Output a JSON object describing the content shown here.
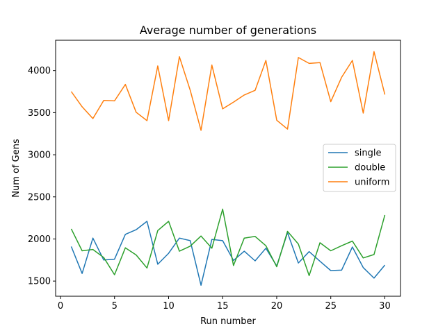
{
  "chart_data": {
    "type": "line",
    "title": "Average number of generations",
    "xlabel": "Run number",
    "ylabel": "Num of Gens",
    "xlim": [
      -0.45,
      31.45
    ],
    "ylim": [
      1320,
      4360
    ],
    "xticks": [
      0,
      5,
      10,
      15,
      20,
      25,
      30
    ],
    "yticks": [
      1500,
      2000,
      2500,
      3000,
      3500,
      4000
    ],
    "legend_position": "center-right",
    "x": [
      1,
      2,
      3,
      4,
      5,
      6,
      7,
      8,
      9,
      10,
      11,
      12,
      13,
      14,
      15,
      16,
      17,
      18,
      19,
      20,
      21,
      22,
      23,
      24,
      25,
      26,
      27,
      28,
      29,
      30
    ],
    "series": [
      {
        "name": "single",
        "color": "#1f77b4",
        "values": [
          1910,
          1590,
          2010,
          1750,
          1760,
          2055,
          2110,
          2210,
          1700,
          1830,
          2010,
          1980,
          1450,
          1995,
          1980,
          1745,
          1855,
          1740,
          1890,
          1680,
          2075,
          1715,
          1850,
          1735,
          1625,
          1630,
          1905,
          1660,
          1535,
          1690
        ]
      },
      {
        "name": "double",
        "color": "#2ca02c",
        "values": [
          2120,
          1860,
          1875,
          1780,
          1575,
          1895,
          1810,
          1655,
          2100,
          2210,
          1855,
          1915,
          2035,
          1890,
          2355,
          1685,
          2010,
          2030,
          1920,
          1670,
          2090,
          1940,
          1565,
          1955,
          1860,
          1920,
          1975,
          1775,
          1815,
          2285
        ]
      },
      {
        "name": "uniform",
        "color": "#ff7f0e",
        "values": [
          3750,
          3570,
          3430,
          3645,
          3640,
          3835,
          3505,
          3405,
          4055,
          3405,
          4165,
          3765,
          3290,
          4065,
          3545,
          3625,
          3710,
          3765,
          4120,
          3410,
          3305,
          4155,
          4085,
          4095,
          3630,
          3920,
          4120,
          3495,
          4225,
          3715
        ]
      }
    ]
  }
}
